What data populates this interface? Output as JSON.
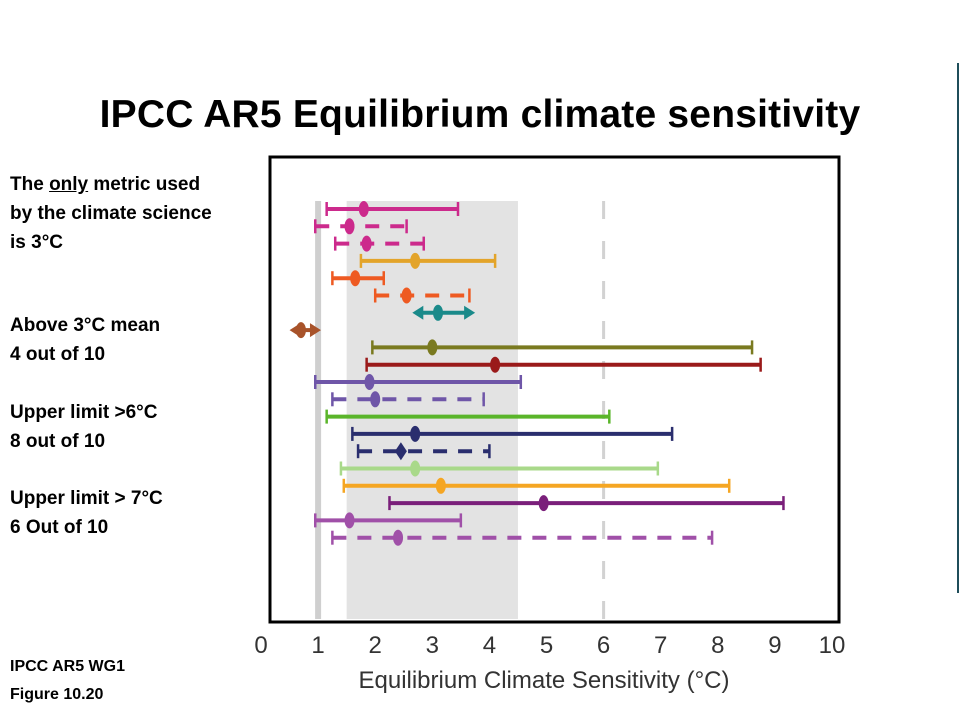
{
  "slide": {
    "title": "IPCC AR5 Equilibrium climate sensitivity",
    "note1": {
      "line1_pre": "The ",
      "line1_u": "only",
      "line1_post": " metric used",
      "line2": "by the climate science",
      "line3": "is 3°C"
    },
    "note2": {
      "line1": "Above 3°C mean",
      "line2": "4 out of 10"
    },
    "note3": {
      "line1": "Upper  limit >6°C",
      "line2": "8 out of 10"
    },
    "note4": {
      "line1": "Upper limit  > 7°C",
      "line2": "6 Out of 10"
    },
    "source": {
      "line1": "IPCC AR5 WG1",
      "line2": "Figure  10.20"
    }
  },
  "chart_data": {
    "type": "range",
    "title": "",
    "xlabel": "Equilibrium Climate Sensitivity (°C)",
    "xlim": [
      0,
      10
    ],
    "xticks": [
      0,
      1,
      2,
      3,
      4,
      5,
      6,
      7,
      8,
      9,
      10
    ],
    "shading": {
      "likely_range": [
        1.5,
        4.5
      ],
      "line_at": 1.0,
      "dashed_line_at": 6.0
    },
    "ranges": [
      {
        "low": 1.15,
        "best": 1.8,
        "high": 3.45,
        "style": "solid",
        "color": "#cc2a8c",
        "marker": "ellipse"
      },
      {
        "low": 0.95,
        "best": 1.55,
        "high": 2.55,
        "style": "dashed",
        "color": "#cc2a8c",
        "marker": "ellipse"
      },
      {
        "low": 1.3,
        "best": 1.85,
        "high": 2.85,
        "style": "dashed",
        "color": "#cc2a8c",
        "marker": "ellipse"
      },
      {
        "low": 1.75,
        "best": 2.7,
        "high": 4.1,
        "style": "solid",
        "color": "#e3a42a",
        "marker": "ellipse"
      },
      {
        "low": 1.25,
        "best": 1.65,
        "high": 2.15,
        "style": "solid",
        "color": "#ee5a22",
        "marker": "ellipse"
      },
      {
        "low": 2.0,
        "best": 2.55,
        "high": 3.65,
        "style": "dashed",
        "color": "#ee5a22",
        "marker": "ellipse"
      },
      {
        "low": 2.65,
        "best": 3.1,
        "high": 3.75,
        "style": "arrow",
        "color": "#1a8a8a",
        "marker": "ellipse"
      },
      {
        "low": 0.5,
        "best": 0.7,
        "high": 1.05,
        "style": "arrow",
        "color": "#a8532a",
        "marker": "ellipse"
      },
      {
        "low": 1.95,
        "best": 3.0,
        "high": 8.6,
        "style": "solid",
        "color": "#7a7a20",
        "marker": "ellipse"
      },
      {
        "low": 1.85,
        "best": 4.1,
        "high": 8.75,
        "style": "solid",
        "color": "#9a1a1a",
        "marker": "ellipse"
      },
      {
        "low": 0.95,
        "best": 1.9,
        "high": 4.55,
        "style": "solid",
        "color": "#6f56a8",
        "marker": "ellipse"
      },
      {
        "low": 1.25,
        "best": 2.0,
        "high": 3.9,
        "style": "dashed",
        "color": "#6f56a8",
        "marker": "ellipse"
      },
      {
        "low": 1.15,
        "best": null,
        "high": 6.1,
        "style": "solid",
        "color": "#5ab52a",
        "marker": "none"
      },
      {
        "low": 1.6,
        "best": 2.7,
        "high": 7.2,
        "style": "solid",
        "color": "#2a2e6e",
        "marker": "ellipse"
      },
      {
        "low": 1.7,
        "best": 2.45,
        "high": 4.0,
        "style": "dashed",
        "color": "#2a2e6e",
        "marker": "diamond"
      },
      {
        "low": 1.4,
        "best": 2.7,
        "high": 6.95,
        "style": "solid",
        "color": "#a9d98a",
        "marker": "ellipse"
      },
      {
        "low": 1.45,
        "best": 3.15,
        "high": 8.2,
        "style": "solid",
        "color": "#f5a623",
        "marker": "ellipse"
      },
      {
        "low": 2.25,
        "best": 4.95,
        "high": 9.15,
        "style": "solid",
        "color": "#7a1f7a",
        "marker": "ellipse"
      },
      {
        "low": 0.95,
        "best": 1.55,
        "high": 3.5,
        "style": "solid",
        "color": "#a050a8",
        "marker": "ellipse"
      },
      {
        "low": 1.25,
        "best": 2.4,
        "high": 7.9,
        "style": "dashed",
        "color": "#a050a8",
        "marker": "ellipse"
      }
    ]
  }
}
